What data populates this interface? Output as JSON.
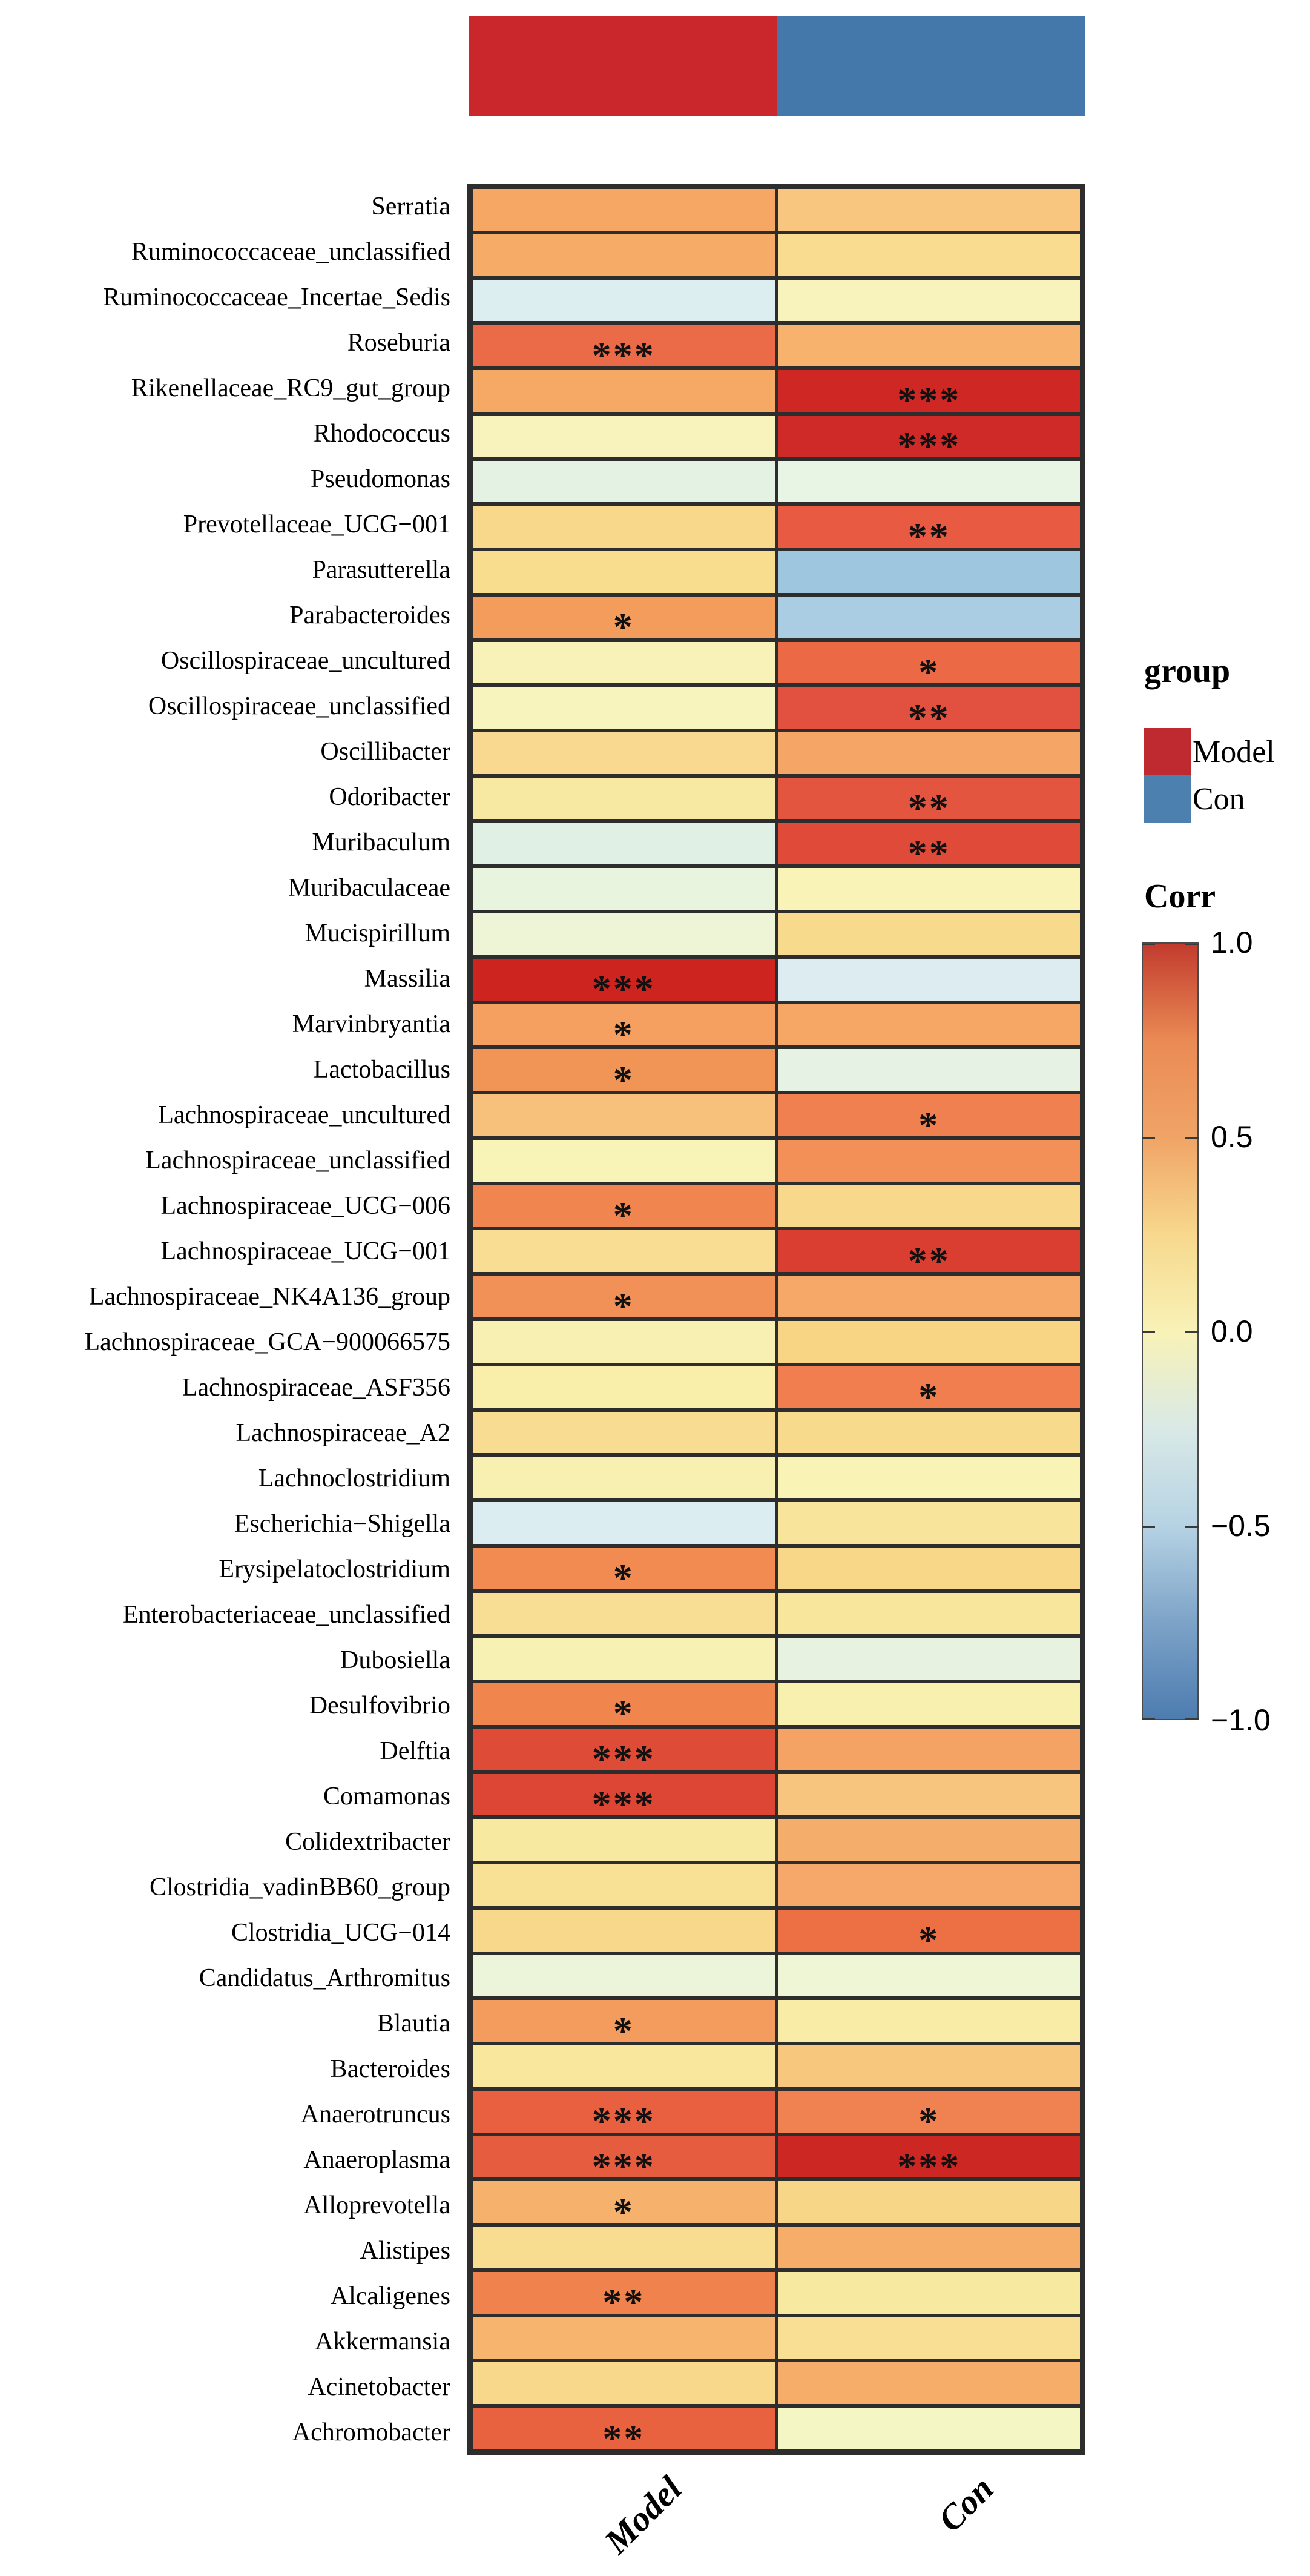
{
  "annotation_bar": {
    "model_color": "#c9272b",
    "con_color": "#4478ab"
  },
  "legend": {
    "group_title": "group",
    "items": [
      {
        "label": "Model",
        "color": "#bf2a31"
      },
      {
        "label": "Con",
        "color": "#4c80ae"
      }
    ],
    "corr_title": "Corr",
    "colorbar_ticks": [
      "1.0",
      "0.5",
      "0.0",
      "−0.5",
      "−1.0"
    ],
    "colorbar_stops": [
      "#c23b2e",
      "#ea8a54",
      "#f0a466",
      "#f7d88d",
      "#f8f2b7",
      "#d9e9e6",
      "#b6d3e4",
      "#7da3c8",
      "#4d7cb0"
    ]
  },
  "chart_data": {
    "type": "heatmap",
    "title": "",
    "xlabel": "",
    "ylabel": "",
    "colormap": "RdYlBu reversed",
    "value_range": [
      -1.0,
      1.0
    ],
    "columns": [
      "Model",
      "Con"
    ],
    "significance_levels": [
      "*",
      "**",
      "***"
    ],
    "rows": [
      {
        "taxon": "Serratia",
        "model": {
          "corr": 0.5,
          "sig": "",
          "color": "#f5a763"
        },
        "con": {
          "corr": 0.35,
          "sig": "",
          "color": "#f8c67f"
        }
      },
      {
        "taxon": "Ruminococcaceae_unclassified",
        "model": {
          "corr": 0.5,
          "sig": "",
          "color": "#f6ac66"
        },
        "con": {
          "corr": 0.25,
          "sig": "",
          "color": "#f9dc90"
        }
      },
      {
        "taxon": "Ruminococcaceae_Incertae_Sedis",
        "model": {
          "corr": -0.25,
          "sig": "",
          "color": "#dceef0"
        },
        "con": {
          "corr": 0.05,
          "sig": "",
          "color": "#f8f3bc"
        }
      },
      {
        "taxon": "Roseburia",
        "model": {
          "corr": 0.7,
          "sig": "***",
          "color": "#eb6b49"
        },
        "con": {
          "corr": 0.45,
          "sig": "",
          "color": "#f7b26e"
        }
      },
      {
        "taxon": "Rikenellaceae_RC9_gut_group",
        "model": {
          "corr": 0.5,
          "sig": "",
          "color": "#f6a964"
        },
        "con": {
          "corr": 0.95,
          "sig": "***",
          "color": "#cf2824"
        }
      },
      {
        "taxon": "Rhodococcus",
        "model": {
          "corr": 0.05,
          "sig": "",
          "color": "#f8f3bc"
        },
        "con": {
          "corr": 0.95,
          "sig": "***",
          "color": "#d02a28"
        }
      },
      {
        "taxon": "Pseudomonas",
        "model": {
          "corr": -0.15,
          "sig": "",
          "color": "#e4f2e3"
        },
        "con": {
          "corr": -0.15,
          "sig": "",
          "color": "#e8f4e4"
        }
      },
      {
        "taxon": "Prevotellaceae_UCG−001",
        "model": {
          "corr": 0.25,
          "sig": "",
          "color": "#f8d98c"
        },
        "con": {
          "corr": 0.7,
          "sig": "**",
          "color": "#e85b42"
        }
      },
      {
        "taxon": "Parasutterella",
        "model": {
          "corr": 0.25,
          "sig": "",
          "color": "#f9dd8e"
        },
        "con": {
          "corr": -0.5,
          "sig": "",
          "color": "#9fc6df"
        }
      },
      {
        "taxon": "Parabacteroides",
        "model": {
          "corr": 0.55,
          "sig": "*",
          "color": "#f39c5c"
        },
        "con": {
          "corr": -0.45,
          "sig": "",
          "color": "#aacde4"
        }
      },
      {
        "taxon": "Oscillospiraceae_uncultured",
        "model": {
          "corr": 0.05,
          "sig": "",
          "color": "#f8f2b9"
        },
        "con": {
          "corr": 0.7,
          "sig": "*",
          "color": "#ec6946"
        }
      },
      {
        "taxon": "Oscillospiraceae_unclassified",
        "model": {
          "corr": 0.05,
          "sig": "",
          "color": "#f8f4bd"
        },
        "con": {
          "corr": 0.75,
          "sig": "**",
          "color": "#e25140"
        }
      },
      {
        "taxon": "Oscillibacter",
        "model": {
          "corr": 0.25,
          "sig": "",
          "color": "#f8d98f"
        },
        "con": {
          "corr": 0.5,
          "sig": "",
          "color": "#f5a566"
        }
      },
      {
        "taxon": "Odoribacter",
        "model": {
          "corr": 0.15,
          "sig": "",
          "color": "#f7e9a2"
        },
        "con": {
          "corr": 0.75,
          "sig": "**",
          "color": "#e4553f"
        }
      },
      {
        "taxon": "Muribaculum",
        "model": {
          "corr": -0.15,
          "sig": "",
          "color": "#e0f0e5"
        },
        "con": {
          "corr": 0.8,
          "sig": "**",
          "color": "#df4b38"
        }
      },
      {
        "taxon": "Muribaculaceae",
        "model": {
          "corr": -0.1,
          "sig": "",
          "color": "#e9f4de"
        },
        "con": {
          "corr": 0.05,
          "sig": "",
          "color": "#f9f3b8"
        }
      },
      {
        "taxon": "Mucispirillum",
        "model": {
          "corr": -0.1,
          "sig": "",
          "color": "#edf5d6"
        },
        "con": {
          "corr": 0.25,
          "sig": "",
          "color": "#f8da8c"
        }
      },
      {
        "taxon": "Massilia",
        "model": {
          "corr": 0.95,
          "sig": "***",
          "color": "#cd2420"
        },
        "con": {
          "corr": -0.25,
          "sig": "",
          "color": "#dcecf0"
        }
      },
      {
        "taxon": "Marvinbryantia",
        "model": {
          "corr": 0.55,
          "sig": "*",
          "color": "#f5a060"
        },
        "con": {
          "corr": 0.5,
          "sig": "",
          "color": "#f6a765"
        }
      },
      {
        "taxon": "Lactobacillus",
        "model": {
          "corr": 0.55,
          "sig": "*",
          "color": "#f19556"
        },
        "con": {
          "corr": -0.15,
          "sig": "",
          "color": "#e5f2e4"
        }
      },
      {
        "taxon": "Lachnospiraceae_uncultured",
        "model": {
          "corr": 0.38,
          "sig": "",
          "color": "#f7c17b"
        },
        "con": {
          "corr": 0.6,
          "sig": "*",
          "color": "#f08050"
        }
      },
      {
        "taxon": "Lachnospiraceae_unclassified",
        "model": {
          "corr": 0.05,
          "sig": "",
          "color": "#f8f3b7"
        },
        "con": {
          "corr": 0.55,
          "sig": "",
          "color": "#f29058"
        }
      },
      {
        "taxon": "Lachnospiraceae_UCG−006",
        "model": {
          "corr": 0.6,
          "sig": "*",
          "color": "#f0854f"
        },
        "con": {
          "corr": 0.25,
          "sig": "",
          "color": "#f8d98b"
        }
      },
      {
        "taxon": "Lachnospiraceae_UCG−001",
        "model": {
          "corr": 0.25,
          "sig": "",
          "color": "#f8dd92"
        },
        "con": {
          "corr": 0.85,
          "sig": "**",
          "color": "#da3e30"
        }
      },
      {
        "taxon": "Lachnospiraceae_NK4A136_group",
        "model": {
          "corr": 0.55,
          "sig": "*",
          "color": "#f29157"
        },
        "con": {
          "corr": 0.5,
          "sig": "",
          "color": "#f6a869"
        }
      },
      {
        "taxon": "Lachnospiraceae_GCA−900066575",
        "model": {
          "corr": 0.05,
          "sig": "",
          "color": "#f8f0b2"
        },
        "con": {
          "corr": 0.28,
          "sig": "",
          "color": "#f8d585"
        }
      },
      {
        "taxon": "Lachnospiraceae_ASF356",
        "model": {
          "corr": 0.1,
          "sig": "",
          "color": "#f9efab"
        },
        "con": {
          "corr": 0.6,
          "sig": "*",
          "color": "#f07e4e"
        }
      },
      {
        "taxon": "Lachnospiraceae_A2",
        "model": {
          "corr": 0.25,
          "sig": "",
          "color": "#f8dc92"
        },
        "con": {
          "corr": 0.25,
          "sig": "",
          "color": "#f8da8c"
        }
      },
      {
        "taxon": "Lachnoclostridium",
        "model": {
          "corr": 0.05,
          "sig": "",
          "color": "#f8f0b0"
        },
        "con": {
          "corr": 0.05,
          "sig": "",
          "color": "#f9f3b6"
        }
      },
      {
        "taxon": "Escherichia−Shigella",
        "model": {
          "corr": -0.25,
          "sig": "",
          "color": "#dcedf1"
        },
        "con": {
          "corr": 0.15,
          "sig": "",
          "color": "#f8e59b"
        }
      },
      {
        "taxon": "Erysipelatoclostridium",
        "model": {
          "corr": 0.6,
          "sig": "*",
          "color": "#f28b52"
        },
        "con": {
          "corr": 0.25,
          "sig": "",
          "color": "#f8d788"
        }
      },
      {
        "taxon": "Enterobacteriaceae_unclassified",
        "model": {
          "corr": 0.25,
          "sig": "",
          "color": "#f8dd95"
        },
        "con": {
          "corr": 0.15,
          "sig": "",
          "color": "#f8e69c"
        }
      },
      {
        "taxon": "Dubosiella",
        "model": {
          "corr": 0.05,
          "sig": "",
          "color": "#f7f2b4"
        },
        "con": {
          "corr": -0.15,
          "sig": "",
          "color": "#e7f3e0"
        }
      },
      {
        "taxon": "Desulfovibrio",
        "model": {
          "corr": 0.6,
          "sig": "*",
          "color": "#f0854e"
        },
        "con": {
          "corr": 0.05,
          "sig": "",
          "color": "#f8f0ae"
        }
      },
      {
        "taxon": "Delftia",
        "model": {
          "corr": 0.8,
          "sig": "***",
          "color": "#de4b37"
        },
        "con": {
          "corr": 0.5,
          "sig": "",
          "color": "#f5a365"
        }
      },
      {
        "taxon": "Comamonas",
        "model": {
          "corr": 0.8,
          "sig": "***",
          "color": "#dd4634"
        },
        "con": {
          "corr": 0.38,
          "sig": "",
          "color": "#f7c57e"
        }
      },
      {
        "taxon": "Colidextribacter",
        "model": {
          "corr": 0.15,
          "sig": "",
          "color": "#f8e9a1"
        },
        "con": {
          "corr": 0.5,
          "sig": "",
          "color": "#f5ad6b"
        }
      },
      {
        "taxon": "Clostridia_vadinBB60_group",
        "model": {
          "corr": 0.22,
          "sig": "",
          "color": "#f8e195"
        },
        "con": {
          "corr": 0.5,
          "sig": "",
          "color": "#f5a869"
        }
      },
      {
        "taxon": "Clostridia_UCG−014",
        "model": {
          "corr": 0.25,
          "sig": "",
          "color": "#f8d88a"
        },
        "con": {
          "corr": 0.68,
          "sig": "*",
          "color": "#ed6f44"
        }
      },
      {
        "taxon": "Candidatus_Arthromitus",
        "model": {
          "corr": -0.1,
          "sig": "",
          "color": "#ecf5d9"
        },
        "con": {
          "corr": -0.1,
          "sig": "",
          "color": "#eef6d6"
        }
      },
      {
        "taxon": "Blautia",
        "model": {
          "corr": 0.55,
          "sig": "*",
          "color": "#f49c5d"
        },
        "con": {
          "corr": 0.12,
          "sig": "",
          "color": "#f8eca6"
        }
      },
      {
        "taxon": "Bacteroides",
        "model": {
          "corr": 0.15,
          "sig": "",
          "color": "#f8e79d"
        },
        "con": {
          "corr": 0.38,
          "sig": "",
          "color": "#f7c77e"
        }
      },
      {
        "taxon": "Anaerotruncus",
        "model": {
          "corr": 0.72,
          "sig": "***",
          "color": "#e8603f"
        },
        "con": {
          "corr": 0.6,
          "sig": "*",
          "color": "#f08252"
        }
      },
      {
        "taxon": "Anaeroplasma",
        "model": {
          "corr": 0.72,
          "sig": "***",
          "color": "#e65c3e"
        },
        "con": {
          "corr": 0.95,
          "sig": "***",
          "color": "#cc2723"
        }
      },
      {
        "taxon": "Alloprevotella",
        "model": {
          "corr": 0.45,
          "sig": "*",
          "color": "#f6b26d"
        },
        "con": {
          "corr": 0.25,
          "sig": "",
          "color": "#f8d688"
        }
      },
      {
        "taxon": "Alistipes",
        "model": {
          "corr": 0.25,
          "sig": "",
          "color": "#f8dc90"
        },
        "con": {
          "corr": 0.5,
          "sig": "",
          "color": "#f6ad69"
        }
      },
      {
        "taxon": "Alcaligenes",
        "model": {
          "corr": 0.62,
          "sig": "**",
          "color": "#f0824d"
        },
        "con": {
          "corr": 0.15,
          "sig": "",
          "color": "#f8e9a0"
        }
      },
      {
        "taxon": "Akkermansia",
        "model": {
          "corr": 0.45,
          "sig": "",
          "color": "#f6b46f"
        },
        "con": {
          "corr": 0.22,
          "sig": "",
          "color": "#f8df94"
        }
      },
      {
        "taxon": "Acinetobacter",
        "model": {
          "corr": 0.25,
          "sig": "",
          "color": "#f8d88b"
        },
        "con": {
          "corr": 0.5,
          "sig": "",
          "color": "#f6ad6a"
        }
      },
      {
        "taxon": "Achromobacter",
        "model": {
          "corr": 0.7,
          "sig": "**",
          "color": "#e8623f"
        },
        "con": {
          "corr": -0.03,
          "sig": "",
          "color": "#f4f6c4"
        }
      }
    ]
  }
}
